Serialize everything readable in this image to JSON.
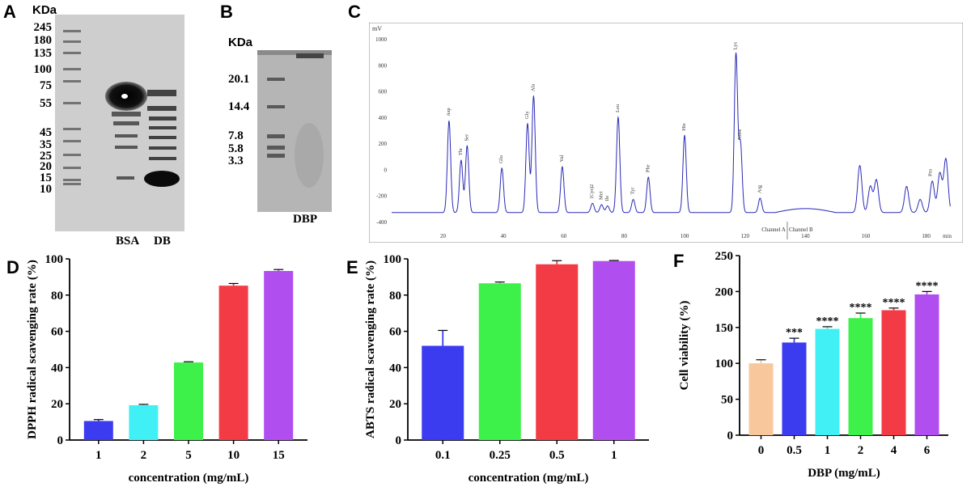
{
  "panels": {
    "A": {
      "letter": "A",
      "unit": "KDa",
      "markers": [
        "245",
        "180",
        "135",
        "100",
        "75",
        "55",
        "45",
        "35",
        "25",
        "20",
        "15",
        "10"
      ],
      "lanes": [
        "BSA",
        "DB"
      ]
    },
    "B": {
      "letter": "B",
      "unit": "KDa",
      "markers": [
        "20.1",
        "14.4",
        "7.8",
        "5.8",
        "3.3"
      ],
      "lanes": [
        "DBP"
      ]
    },
    "C": {
      "letter": "C",
      "y_unit": "mV",
      "y_ticks": [
        "1000",
        "800",
        "600",
        "400",
        "200",
        "0",
        "-200",
        "-400"
      ],
      "x_ticks": [
        "20",
        "40",
        "60",
        "80",
        "100",
        "120",
        "140",
        "160",
        "180"
      ],
      "x_unit": "min",
      "channel_a": "Channel A",
      "channel_b": "Channel B",
      "peak_labels": [
        "Asp",
        "Thr",
        "Ser",
        "Glu",
        "Gly",
        "Ala",
        "Val",
        "(Cys)2",
        "Met",
        "Ile",
        "Leu",
        "Tyr",
        "Phe",
        "His",
        "Lys",
        "NH4",
        "Arg",
        "Pro"
      ]
    }
  },
  "chart_data": [
    {
      "panel": "D",
      "type": "bar",
      "categories": [
        "1",
        "2",
        "5",
        "10",
        "15"
      ],
      "values": [
        10.5,
        19.2,
        42.8,
        85.2,
        93.3
      ],
      "errors": [
        0.8,
        0.5,
        0.4,
        1.2,
        0.8
      ],
      "colors": [
        "#3b3bf0",
        "#40f0f5",
        "#3ef04a",
        "#f23b45",
        "#b04ef0"
      ],
      "xlabel": "concentration (mg/mL)",
      "ylabel": "DPPH radical scavenging rate (%)",
      "ylim": [
        0,
        100
      ],
      "yticks": [
        0,
        20,
        40,
        60,
        80,
        100
      ],
      "annotations": []
    },
    {
      "panel": "E",
      "type": "bar",
      "categories": [
        "0.1",
        "0.25",
        "0.5",
        "1"
      ],
      "values": [
        52.0,
        86.5,
        97.0,
        98.8
      ],
      "errors": [
        8.5,
        0.7,
        2.0,
        0.3
      ],
      "colors": [
        "#3b3bf0",
        "#3ef04a",
        "#f23b45",
        "#b04ef0"
      ],
      "xlabel": "concentration (mg/mL)",
      "ylabel": "ABTS radical scavenging rate (%)",
      "ylim": [
        0,
        100
      ],
      "yticks": [
        0,
        20,
        40,
        60,
        80,
        100
      ],
      "annotations": []
    },
    {
      "panel": "F",
      "type": "bar",
      "categories": [
        "0",
        "0.5",
        "1",
        "2",
        "4",
        "6"
      ],
      "values": [
        100,
        129,
        148,
        163,
        174,
        196
      ],
      "errors": [
        5,
        6,
        3,
        7,
        3,
        4
      ],
      "colors": [
        "#f8c79b",
        "#3b3bf0",
        "#40f0f5",
        "#3ef04a",
        "#f23b45",
        "#b04ef0"
      ],
      "xlabel": "DBP (mg/mL)",
      "ylabel": "Cell viability (%)",
      "ylim": [
        0,
        250
      ],
      "yticks": [
        0,
        50,
        100,
        150,
        200,
        250
      ],
      "annotations": [
        "",
        "***",
        "****",
        "****",
        "****",
        "****"
      ]
    }
  ],
  "letters": {
    "D": "D",
    "E": "E",
    "F": "F"
  }
}
